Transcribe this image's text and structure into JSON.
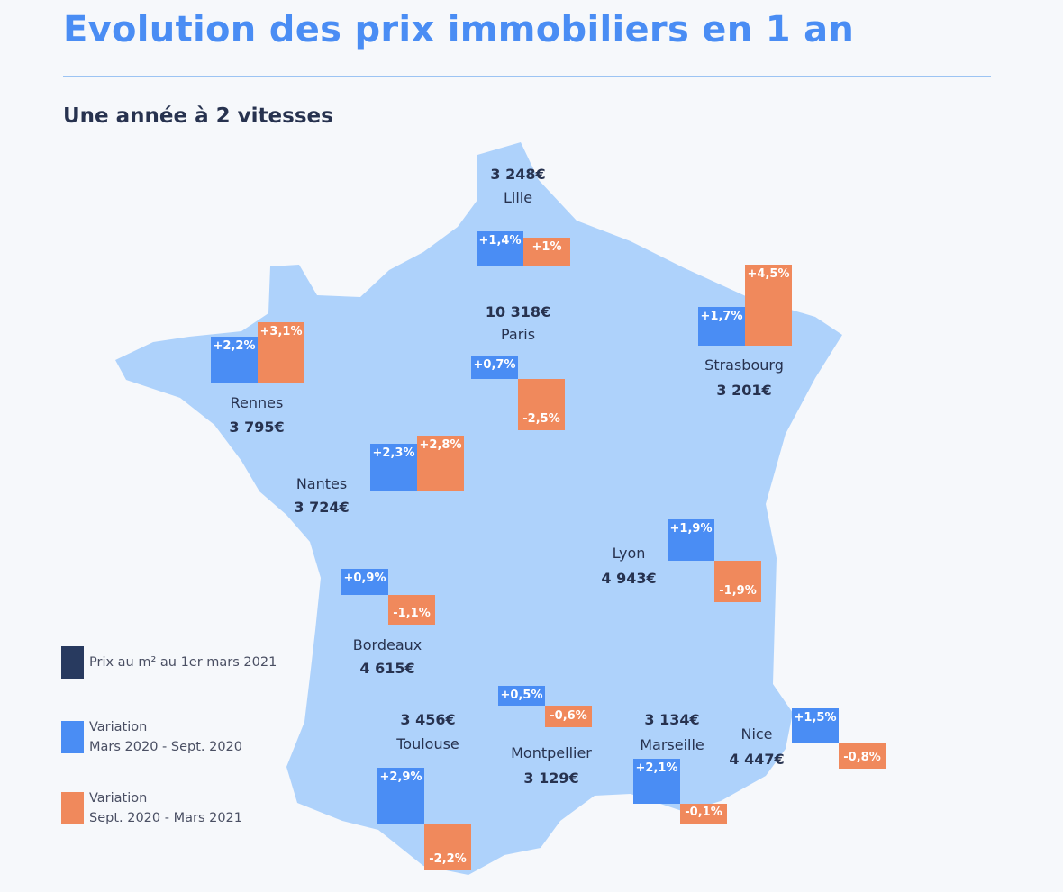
{
  "title": "Evolution des prix immobiliers en 1 an",
  "subtitle": "Une année à 2 vitesses",
  "colors": {
    "price": "#283a5f",
    "variation1": "#4a8df4",
    "variation2": "#f0895c",
    "map": "#aed2fb",
    "title": "#4a8df4"
  },
  "legend": [
    {
      "line1": "Prix au m² au 1er mars 2021",
      "line2": ""
    },
    {
      "line1": "Variation",
      "line2": "Mars 2020 - Sept. 2020"
    },
    {
      "line1": "Variation",
      "line2": "Sept. 2020 - Mars 2021"
    }
  ],
  "chart_data": {
    "type": "bar",
    "title": "Evolution des prix immobiliers en 1 an",
    "series_names": [
      "Variation Mars 2020 - Sept. 2020",
      "Variation Sept. 2020 - Mars 2021"
    ],
    "cities": [
      {
        "name": "Lille",
        "price": "3 248€",
        "v1": 1.4,
        "v2": 1.0,
        "l1": "+1,4%",
        "l2": "+1%"
      },
      {
        "name": "Paris",
        "price": "10 318€",
        "v1": 0.7,
        "v2": -2.5,
        "l1": "+0,7%",
        "l2": "-2,5%"
      },
      {
        "name": "Strasbourg",
        "price": "3 201€",
        "v1": 1.7,
        "v2": 4.5,
        "l1": "+1,7%",
        "l2": "+4,5%"
      },
      {
        "name": "Rennes",
        "price": "3 795€",
        "v1": 2.2,
        "v2": 3.1,
        "l1": "+2,2%",
        "l2": "+3,1%"
      },
      {
        "name": "Nantes",
        "price": "3 724€",
        "v1": 2.3,
        "v2": 2.8,
        "l1": "+2,3%",
        "l2": "+2,8%"
      },
      {
        "name": "Bordeaux",
        "price": "4 615€",
        "v1": 0.9,
        "v2": -1.1,
        "l1": "+0,9%",
        "l2": "-1,1%"
      },
      {
        "name": "Lyon",
        "price": "4 943€",
        "v1": 1.9,
        "v2": -1.9,
        "l1": "+1,9%",
        "l2": "-1,9%"
      },
      {
        "name": "Montpellier",
        "price": "3 129€",
        "v1": 0.5,
        "v2": -0.6,
        "l1": "+0,5%",
        "l2": "-0,6%"
      },
      {
        "name": "Toulouse",
        "price": "3 456€",
        "v1": 2.9,
        "v2": -2.2,
        "l1": "+2,9%",
        "l2": "-2,2%"
      },
      {
        "name": "Marseille",
        "price": "3 134€",
        "v1": 2.1,
        "v2": -0.1,
        "l1": "+2,1%",
        "l2": "-0,1%"
      },
      {
        "name": "Nice",
        "price": "4 447€",
        "v1": 1.5,
        "v2": -0.8,
        "l1": "+1,5%",
        "l2": "-0,8%"
      }
    ]
  }
}
